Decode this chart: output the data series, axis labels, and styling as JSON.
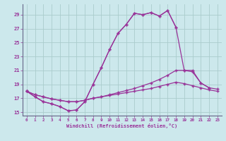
{
  "title": "",
  "xlabel": "Windchill (Refroidissement éolien,°C)",
  "bg_color": "#cce8ec",
  "grid_color": "#aacccc",
  "line_color": "#993399",
  "xlim": [
    -0.5,
    23.5
  ],
  "ylim": [
    14.5,
    30.5
  ],
  "yticks": [
    15,
    17,
    19,
    21,
    23,
    25,
    27,
    29
  ],
  "xticks": [
    0,
    1,
    2,
    3,
    4,
    5,
    6,
    7,
    8,
    9,
    10,
    11,
    12,
    13,
    14,
    15,
    16,
    17,
    18,
    19,
    20,
    21,
    22,
    23
  ],
  "series1_x": [
    0,
    1,
    2,
    3,
    4,
    5,
    6,
    7,
    8,
    9,
    10,
    11,
    12,
    13,
    14,
    15,
    16,
    17,
    18
  ],
  "series1_y": [
    18.0,
    17.2,
    16.5,
    16.2,
    15.8,
    15.2,
    15.3,
    16.5,
    19.0,
    21.4,
    24.0,
    26.3,
    27.6,
    29.2,
    29.0,
    29.3,
    28.8,
    29.6,
    27.2
  ],
  "series2_x": [
    0,
    1,
    2,
    3,
    4,
    5,
    6,
    7,
    8,
    9,
    10,
    11,
    12,
    13,
    14,
    15,
    16,
    17,
    18,
    19,
    20,
    21,
    22
  ],
  "series2_y": [
    18.0,
    17.2,
    16.5,
    16.2,
    15.8,
    15.2,
    15.3,
    16.5,
    19.0,
    21.4,
    24.0,
    26.3,
    27.6,
    29.2,
    29.0,
    29.3,
    28.8,
    29.6,
    27.2,
    21.0,
    21.0,
    19.2,
    18.5
  ],
  "series3_x": [
    0,
    1,
    2,
    3,
    4,
    5,
    6,
    7,
    8,
    9,
    10,
    11,
    12,
    13,
    14,
    15,
    16,
    17,
    18,
    19,
    20,
    21,
    22,
    23
  ],
  "series3_y": [
    18.0,
    17.5,
    17.2,
    16.9,
    16.7,
    16.5,
    16.5,
    16.7,
    17.0,
    17.2,
    17.5,
    17.8,
    18.1,
    18.4,
    18.8,
    19.2,
    19.7,
    20.3,
    21.0,
    21.0,
    20.8,
    19.2,
    18.5,
    18.3
  ],
  "series4_x": [
    0,
    1,
    2,
    3,
    4,
    5,
    6,
    7,
    8,
    9,
    10,
    11,
    12,
    13,
    14,
    15,
    16,
    17,
    18,
    19,
    20,
    21,
    22,
    23
  ],
  "series4_y": [
    18.0,
    17.5,
    17.2,
    16.9,
    16.7,
    16.5,
    16.5,
    16.7,
    17.0,
    17.2,
    17.4,
    17.6,
    17.8,
    18.0,
    18.2,
    18.4,
    18.7,
    19.0,
    19.3,
    19.1,
    18.8,
    18.5,
    18.2,
    18.0
  ]
}
